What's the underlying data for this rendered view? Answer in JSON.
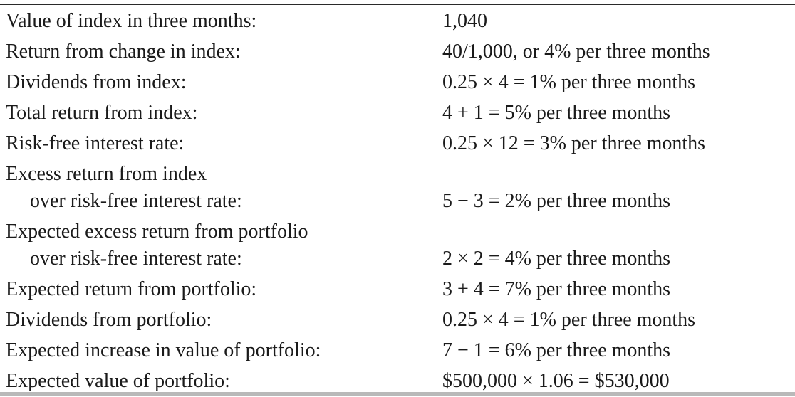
{
  "rows": [
    {
      "label": "Value of index in three months:",
      "value": "1,040"
    },
    {
      "label": "Return from change in index:",
      "value": "40/1,000, or 4% per three months"
    },
    {
      "label": "Dividends from index:",
      "value": "0.25 × 4 = 1% per three months"
    },
    {
      "label": "Total return from index:",
      "value": "4 + 1 = 5% per three months"
    },
    {
      "label": "Risk-free interest rate:",
      "value": "0.25 × 12 = 3% per three months"
    },
    {
      "label_line1": "Excess return from index",
      "label_line2": "over risk-free interest rate:",
      "value": "5 − 3 = 2% per three months"
    },
    {
      "label_line1": "Expected excess return from portfolio",
      "label_line2": "over risk-free interest rate:",
      "value": "2 × 2 = 4% per three months"
    },
    {
      "label": "Expected return from portfolio:",
      "value": "3 + 4 = 7% per three months"
    },
    {
      "label": "Dividends from portfolio:",
      "value": "0.25 × 4 = 1% per three months"
    },
    {
      "label": "Expected increase in value of portfolio:",
      "value": "7 − 1 = 6% per three months"
    },
    {
      "label": "Expected value of portfolio:",
      "value": "$500,000 × 1.06 = $530,000"
    }
  ]
}
